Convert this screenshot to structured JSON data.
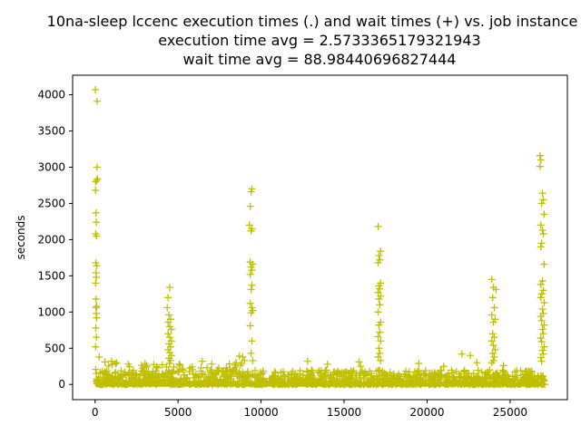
{
  "chart_data": {
    "type": "scatter",
    "title_lines": [
      "10na-sleep lccenc execution times (.) and wait times (+) vs. job instance",
      "execution time avg = 2.5733365179321943",
      "wait time avg = 88.98440696827444"
    ],
    "xlabel": "",
    "ylabel": "seconds",
    "xlim": [
      -1350,
      28450
    ],
    "ylim": [
      -210,
      4270
    ],
    "xticks": [
      0,
      5000,
      10000,
      15000,
      20000,
      25000
    ],
    "xtick_labels": [
      "0",
      "5000",
      "10000",
      "15000",
      "20000",
      "25000"
    ],
    "yticks": [
      0,
      500,
      1000,
      1500,
      2000,
      2500,
      3000,
      3500,
      4000
    ],
    "ytick_labels": [
      "0",
      "500",
      "1000",
      "1500",
      "2000",
      "2500",
      "3000",
      "3500",
      "4000"
    ],
    "grid": false,
    "legend": false,
    "marker_color": "#bfbf00",
    "n_jobs": 27100,
    "series": [
      {
        "marker": "plus",
        "points": [
          [
            20,
            4070
          ],
          [
            120,
            3910
          ],
          [
            120,
            3000
          ],
          [
            150,
            2840
          ],
          [
            40,
            2800
          ],
          [
            100,
            2820
          ],
          [
            30,
            2680
          ],
          [
            60,
            2370
          ],
          [
            80,
            2240
          ],
          [
            40,
            2080
          ],
          [
            90,
            2050
          ],
          [
            50,
            1680
          ],
          [
            100,
            1640
          ],
          [
            60,
            1540
          ],
          [
            80,
            1480
          ],
          [
            40,
            1400
          ],
          [
            60,
            1180
          ],
          [
            100,
            1080
          ],
          [
            60,
            1060
          ],
          [
            70,
            980
          ],
          [
            90,
            920
          ],
          [
            50,
            780
          ],
          [
            80,
            650
          ],
          [
            40,
            520
          ],
          [
            250,
            380
          ],
          [
            600,
            310
          ],
          [
            1000,
            320
          ],
          [
            1300,
            300
          ],
          [
            2000,
            280
          ],
          [
            3100,
            260
          ],
          [
            4400,
            1200
          ],
          [
            4500,
            1340
          ],
          [
            4350,
            1060
          ],
          [
            4450,
            960
          ],
          [
            4550,
            900
          ],
          [
            4400,
            860
          ],
          [
            4500,
            800
          ],
          [
            4600,
            760
          ],
          [
            4400,
            700
          ],
          [
            4500,
            650
          ],
          [
            4600,
            600
          ],
          [
            4450,
            560
          ],
          [
            4550,
            520
          ],
          [
            4400,
            480
          ],
          [
            4500,
            440
          ],
          [
            4600,
            400
          ],
          [
            4450,
            360
          ],
          [
            4550,
            330
          ],
          [
            6450,
            320
          ],
          [
            8500,
            300
          ],
          [
            8700,
            390
          ],
          [
            8900,
            380
          ],
          [
            9000,
            330
          ],
          [
            9450,
            2700
          ],
          [
            9400,
            2660
          ],
          [
            9350,
            2460
          ],
          [
            9300,
            2200
          ],
          [
            9450,
            2150
          ],
          [
            9400,
            2120
          ],
          [
            9350,
            1690
          ],
          [
            9500,
            1660
          ],
          [
            9400,
            1620
          ],
          [
            9450,
            1580
          ],
          [
            9350,
            1520
          ],
          [
            9450,
            1370
          ],
          [
            9400,
            1310
          ],
          [
            9350,
            1120
          ],
          [
            9450,
            1060
          ],
          [
            9500,
            1020
          ],
          [
            9400,
            990
          ],
          [
            9350,
            810
          ],
          [
            9450,
            600
          ],
          [
            9400,
            430
          ],
          [
            9500,
            330
          ],
          [
            12800,
            320
          ],
          [
            14000,
            280
          ],
          [
            15900,
            310
          ],
          [
            16000,
            250
          ],
          [
            17050,
            2180
          ],
          [
            17200,
            1840
          ],
          [
            17100,
            1780
          ],
          [
            17150,
            1720
          ],
          [
            17050,
            1680
          ],
          [
            17200,
            1400
          ],
          [
            17100,
            1360
          ],
          [
            17150,
            1320
          ],
          [
            17050,
            1270
          ],
          [
            17200,
            1220
          ],
          [
            17100,
            1180
          ],
          [
            17150,
            1100
          ],
          [
            17050,
            1000
          ],
          [
            17200,
            860
          ],
          [
            17100,
            820
          ],
          [
            17150,
            720
          ],
          [
            17050,
            660
          ],
          [
            17200,
            600
          ],
          [
            17100,
            500
          ],
          [
            17150,
            430
          ],
          [
            17050,
            380
          ],
          [
            17200,
            330
          ],
          [
            19500,
            290
          ],
          [
            21000,
            250
          ],
          [
            22100,
            420
          ],
          [
            22600,
            400
          ],
          [
            23000,
            300
          ],
          [
            23900,
            1450
          ],
          [
            24000,
            1340
          ],
          [
            24150,
            1310
          ],
          [
            23950,
            1200
          ],
          [
            24050,
            1060
          ],
          [
            23900,
            960
          ],
          [
            24100,
            900
          ],
          [
            24000,
            860
          ],
          [
            23950,
            700
          ],
          [
            24050,
            650
          ],
          [
            23900,
            600
          ],
          [
            24000,
            540
          ],
          [
            24100,
            480
          ],
          [
            23950,
            430
          ],
          [
            24050,
            380
          ],
          [
            24000,
            330
          ],
          [
            23900,
            300
          ],
          [
            24600,
            260
          ],
          [
            26800,
            3160
          ],
          [
            26850,
            3100
          ],
          [
            26800,
            3010
          ],
          [
            26950,
            2640
          ],
          [
            27000,
            2550
          ],
          [
            26900,
            2500
          ],
          [
            27050,
            2350
          ],
          [
            26850,
            2200
          ],
          [
            26950,
            2130
          ],
          [
            27000,
            2080
          ],
          [
            26900,
            1950
          ],
          [
            26850,
            1900
          ],
          [
            27050,
            1660
          ],
          [
            26950,
            1430
          ],
          [
            26850,
            1380
          ],
          [
            27000,
            1300
          ],
          [
            26900,
            1250
          ],
          [
            26850,
            1200
          ],
          [
            27050,
            1130
          ],
          [
            26950,
            1040
          ],
          [
            27000,
            980
          ],
          [
            26850,
            940
          ],
          [
            26900,
            880
          ],
          [
            27050,
            820
          ],
          [
            26950,
            760
          ],
          [
            27000,
            700
          ],
          [
            26850,
            640
          ],
          [
            26900,
            590
          ],
          [
            27050,
            520
          ],
          [
            26950,
            470
          ],
          [
            27000,
            420
          ],
          [
            26850,
            370
          ],
          [
            26900,
            320
          ]
        ]
      }
    ]
  }
}
